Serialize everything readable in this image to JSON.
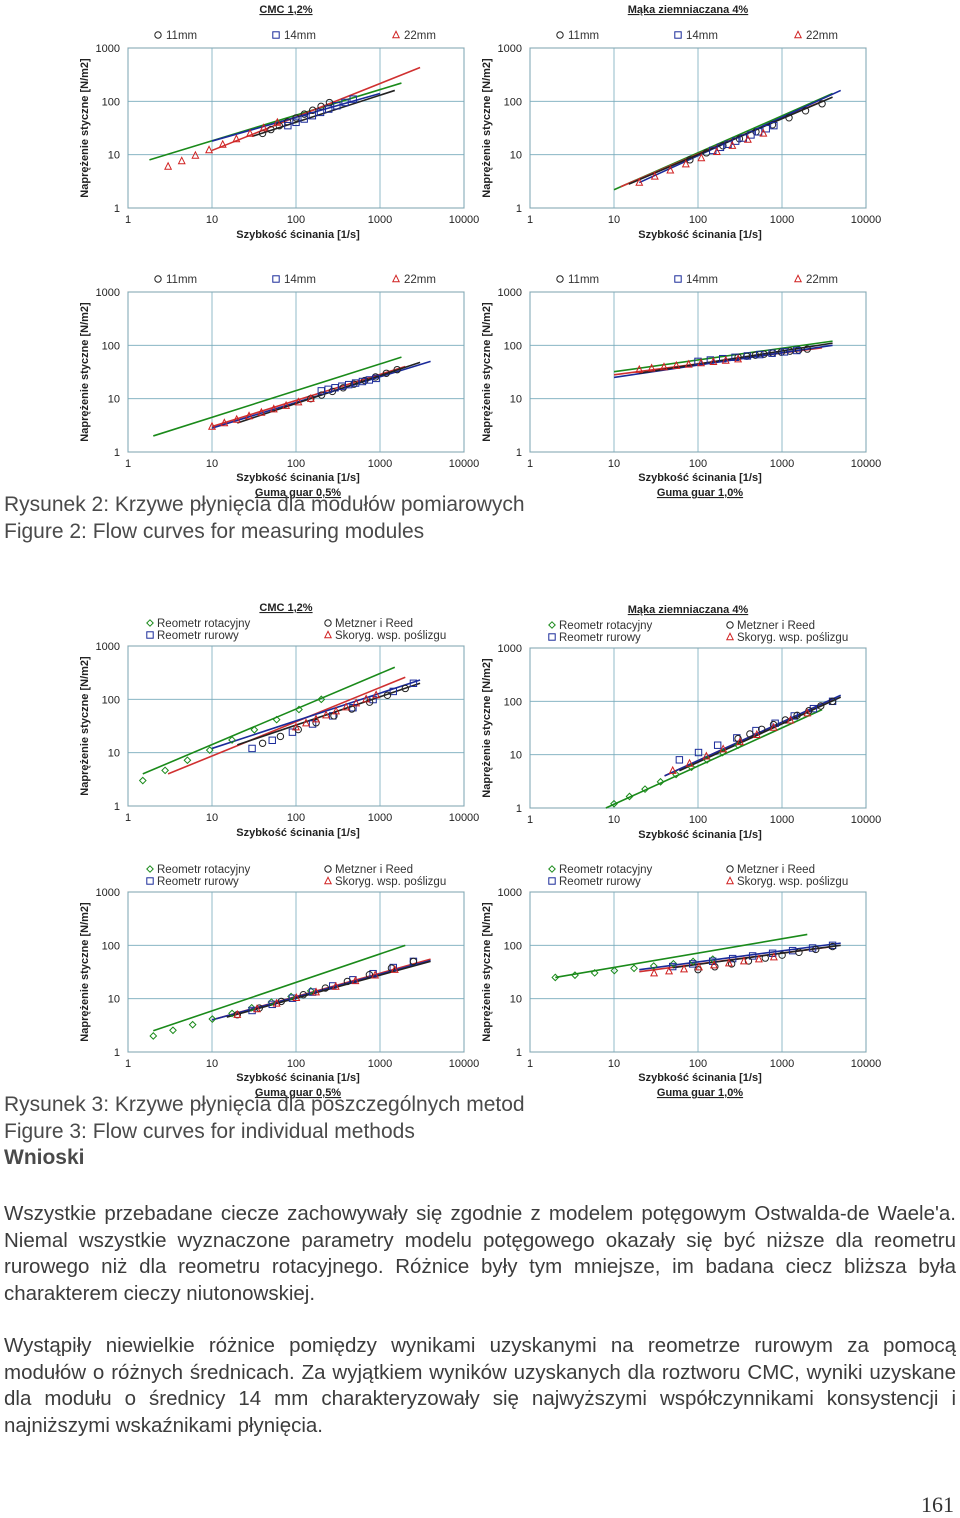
{
  "figure2": {
    "legend": [
      "11mm",
      "14mm",
      "22mm"
    ],
    "legend_colors": [
      "#222222",
      "#1a2a9a",
      "#d02020"
    ],
    "panels": [
      {
        "id": "f2a",
        "title": "CMC 1,2%",
        "sublabel": "",
        "show_xlabel": false,
        "ylabel": "Naprężenie styczne [N/m2]",
        "xlabel": "Szybkość ścinania [1/s]",
        "series": [
          {
            "color": "#222222",
            "marker": "circle",
            "x0": 40,
            "x1": 250,
            "y0": 25,
            "y1": 95
          },
          {
            "color": "#1a2a9a",
            "marker": "square",
            "x0": 80,
            "x1": 480,
            "y0": 35,
            "y1": 110
          },
          {
            "color": "#d02020",
            "marker": "triangle",
            "x0": 3,
            "x1": 60,
            "y0": 6,
            "y1": 40
          }
        ],
        "fits": [
          {
            "color": "#1a8a1a",
            "x0": 1.8,
            "x1": 1800,
            "y0": 8,
            "y1": 220
          },
          {
            "color": "#d03030",
            "x0": 10,
            "x1": 3000,
            "y0": 12,
            "y1": 430
          },
          {
            "color": "#1a2a9a",
            "x0": 10,
            "x1": 1000,
            "y0": 18,
            "y1": 140
          },
          {
            "color": "#222222",
            "x0": 30,
            "x1": 1500,
            "y0": 22,
            "y1": 160
          }
        ]
      },
      {
        "id": "f2b",
        "title": "Mąka ziemniaczana 4%",
        "sublabel": "",
        "show_xlabel": false,
        "ylabel": "Naprężenie styczne [N/m2]",
        "xlabel": "Szybkość ścinania [1/s]",
        "series": [
          {
            "color": "#222222",
            "marker": "circle",
            "x0": 80,
            "x1": 3000,
            "y0": 8,
            "y1": 90
          },
          {
            "color": "#1a2a9a",
            "marker": "square",
            "x0": 150,
            "x1": 800,
            "y0": 12,
            "y1": 35
          },
          {
            "color": "#d02020",
            "marker": "triangle",
            "x0": 20,
            "x1": 600,
            "y0": 3,
            "y1": 25
          }
        ],
        "fits": [
          {
            "color": "#1a8a1a",
            "x0": 10,
            "x1": 4000,
            "y0": 2.2,
            "y1": 140
          },
          {
            "color": "#d03030",
            "x0": 12,
            "x1": 3000,
            "y0": 2.5,
            "y1": 100
          },
          {
            "color": "#1a2a9a",
            "x0": 20,
            "x1": 5000,
            "y0": 3,
            "y1": 160
          },
          {
            "color": "#222222",
            "x0": 15,
            "x1": 4000,
            "y0": 2.8,
            "y1": 120
          }
        ]
      },
      {
        "id": "f2c",
        "title": "",
        "sublabel": "Guma guar 0,5%",
        "show_xlabel": true,
        "ylabel": "Naprężenie styczne [N/m2]",
        "xlabel": "Szybkość ścinania [1/s]",
        "series": [
          {
            "color": "#222222",
            "marker": "circle",
            "x0": 150,
            "x1": 1600,
            "y0": 10,
            "y1": 35
          },
          {
            "color": "#1a2a9a",
            "marker": "square",
            "x0": 200,
            "x1": 900,
            "y0": 14,
            "y1": 24
          },
          {
            "color": "#d02020",
            "marker": "triangle",
            "x0": 10,
            "x1": 150,
            "y0": 3,
            "y1": 10
          }
        ],
        "fits": [
          {
            "color": "#1a8a1a",
            "x0": 2,
            "x1": 1800,
            "y0": 2,
            "y1": 60
          },
          {
            "color": "#d03030",
            "x0": 10,
            "x1": 2000,
            "y0": 3,
            "y1": 40
          },
          {
            "color": "#1a2a9a",
            "x0": 10,
            "x1": 4000,
            "y0": 2.8,
            "y1": 50
          },
          {
            "color": "#222222",
            "x0": 20,
            "x1": 3000,
            "y0": 3.5,
            "y1": 48
          }
        ]
      },
      {
        "id": "f2d",
        "title": "",
        "sublabel": "Guma guar 1,0%",
        "show_xlabel": true,
        "ylabel": "Naprężenie styczne [N/m2]",
        "xlabel": "Szybkość ścinania [1/s]",
        "series": [
          {
            "color": "#222222",
            "marker": "circle",
            "x0": 300,
            "x1": 2000,
            "y0": 60,
            "y1": 85
          },
          {
            "color": "#1a2a9a",
            "marker": "square",
            "x0": 100,
            "x1": 1500,
            "y0": 50,
            "y1": 80
          },
          {
            "color": "#d02020",
            "marker": "triangle",
            "x0": 20,
            "x1": 300,
            "y0": 35,
            "y1": 55
          }
        ],
        "fits": [
          {
            "color": "#1a8a1a",
            "x0": 10,
            "x1": 4000,
            "y0": 32,
            "y1": 120
          },
          {
            "color": "#d03030",
            "x0": 10,
            "x1": 3000,
            "y0": 28,
            "y1": 90
          },
          {
            "color": "#1a2a9a",
            "x0": 10,
            "x1": 4000,
            "y0": 25,
            "y1": 100
          },
          {
            "color": "#222222",
            "x0": 20,
            "x1": 4000,
            "y0": 30,
            "y1": 110
          }
        ]
      }
    ],
    "caption_pl": "Rysunek 2: Krzywe płynięcia dla modułów pomiarowych",
    "caption_en": "Figure 2: Flow curves for measuring modules"
  },
  "figure3": {
    "legend": [
      "Reometr rotacyjny",
      "Reometr rurowy",
      "Metzner i Reed",
      "Skoryg. wsp. poślizgu"
    ],
    "legend_colors": [
      "#1a8a1a",
      "#1a2a9a",
      "#222222",
      "#d02020"
    ],
    "panels": [
      {
        "id": "f3a",
        "title": "CMC 1,2%",
        "sublabel": "",
        "show_xlabel": false,
        "ylabel": "Naprężenie styczne [N/m2]",
        "xlabel": "Szybkość ścinania [1/s]",
        "series": [
          {
            "color": "#1a8a1a",
            "marker": "diamond",
            "x0": 1.5,
            "x1": 200,
            "y0": 3,
            "y1": 100
          },
          {
            "color": "#1a2a9a",
            "marker": "square",
            "x0": 30,
            "x1": 2500,
            "y0": 12,
            "y1": 200
          },
          {
            "color": "#222222",
            "marker": "circle",
            "x0": 40,
            "x1": 2000,
            "y0": 15,
            "y1": 160
          },
          {
            "color": "#d02020",
            "marker": "triangle",
            "x0": 100,
            "x1": 900,
            "y0": 30,
            "y1": 120
          }
        ],
        "fits": [
          {
            "color": "#1a8a1a",
            "x0": 1.5,
            "x1": 1500,
            "y0": 4,
            "y1": 400
          },
          {
            "color": "#d03030",
            "x0": 3,
            "x1": 2000,
            "y0": 4,
            "y1": 260
          },
          {
            "color": "#1a2a9a",
            "x0": 10,
            "x1": 3000,
            "y0": 12,
            "y1": 230
          },
          {
            "color": "#222222",
            "x0": 20,
            "x1": 3000,
            "y0": 14,
            "y1": 200
          }
        ]
      },
      {
        "id": "f3b",
        "title": "Mąka ziemniaczana 4%",
        "sublabel": "",
        "show_xlabel": false,
        "ylabel": "Naprężenie styczne [N/m2]",
        "xlabel": "Szybkość ścinania [1/s]",
        "series": [
          {
            "color": "#1a8a1a",
            "marker": "diamond",
            "x0": 10,
            "x1": 300,
            "y0": 1.2,
            "y1": 15
          },
          {
            "color": "#1a2a9a",
            "marker": "square",
            "x0": 60,
            "x1": 4000,
            "y0": 8,
            "y1": 100
          },
          {
            "color": "#222222",
            "marker": "circle",
            "x0": 300,
            "x1": 4000,
            "y0": 20,
            "y1": 100
          },
          {
            "color": "#d02020",
            "marker": "triangle",
            "x0": 50,
            "x1": 2000,
            "y0": 5,
            "y1": 60
          }
        ],
        "fits": [
          {
            "color": "#1a8a1a",
            "x0": 8,
            "x1": 3000,
            "y0": 1,
            "y1": 70
          },
          {
            "color": "#d03030",
            "x0": 40,
            "x1": 4000,
            "y0": 4,
            "y1": 110
          },
          {
            "color": "#1a2a9a",
            "x0": 40,
            "x1": 5000,
            "y0": 4,
            "y1": 130
          },
          {
            "color": "#222222",
            "x0": 60,
            "x1": 5000,
            "y0": 5,
            "y1": 120
          }
        ]
      },
      {
        "id": "f3c",
        "title": "",
        "sublabel": "Guma guar 0,5%",
        "show_xlabel": true,
        "ylabel": "Naprężenie styczne [N/m2]",
        "xlabel": "Szybkość ścinania [1/s]",
        "series": [
          {
            "color": "#1a8a1a",
            "marker": "diamond",
            "x0": 2,
            "x1": 150,
            "y0": 2,
            "y1": 14
          },
          {
            "color": "#1a2a9a",
            "marker": "square",
            "x0": 30,
            "x1": 2500,
            "y0": 6,
            "y1": 50
          },
          {
            "color": "#222222",
            "marker": "circle",
            "x0": 20,
            "x1": 2500,
            "y0": 5,
            "y1": 50
          },
          {
            "color": "#d02020",
            "marker": "triangle",
            "x0": 20,
            "x1": 1500,
            "y0": 5,
            "y1": 35
          }
        ],
        "fits": [
          {
            "color": "#1a8a1a",
            "x0": 2,
            "x1": 2000,
            "y0": 2.5,
            "y1": 100
          },
          {
            "color": "#d03030",
            "x0": 10,
            "x1": 4000,
            "y0": 4,
            "y1": 55
          },
          {
            "color": "#1a2a9a",
            "x0": 10,
            "x1": 4000,
            "y0": 4,
            "y1": 52
          },
          {
            "color": "#222222",
            "x0": 15,
            "x1": 4000,
            "y0": 4.5,
            "y1": 50
          }
        ]
      },
      {
        "id": "f3d",
        "title": "",
        "sublabel": "Guma guar 1,0%",
        "show_xlabel": true,
        "ylabel": "Naprężenie styczne [N/m2]",
        "xlabel": "Szybkość ścinania [1/s]",
        "series": [
          {
            "color": "#1a8a1a",
            "marker": "diamond",
            "x0": 2,
            "x1": 150,
            "y0": 25,
            "y1": 55
          },
          {
            "color": "#1a2a9a",
            "marker": "square",
            "x0": 50,
            "x1": 4000,
            "y0": 40,
            "y1": 100
          },
          {
            "color": "#222222",
            "marker": "circle",
            "x0": 100,
            "x1": 4000,
            "y0": 35,
            "y1": 95
          },
          {
            "color": "#d02020",
            "marker": "triangle",
            "x0": 30,
            "x1": 800,
            "y0": 30,
            "y1": 60
          }
        ],
        "fits": [
          {
            "color": "#1a8a1a",
            "x0": 2,
            "x1": 2000,
            "y0": 25,
            "y1": 160
          },
          {
            "color": "#d03030",
            "x0": 20,
            "x1": 4000,
            "y0": 32,
            "y1": 95
          },
          {
            "color": "#1a2a9a",
            "x0": 20,
            "x1": 5000,
            "y0": 35,
            "y1": 110
          },
          {
            "color": "#222222",
            "x0": 50,
            "x1": 5000,
            "y0": 38,
            "y1": 100
          }
        ]
      }
    ],
    "caption_pl": "Rysunek 3: Krzywe płynięcia dla poszczególnych metod",
    "caption_en": "Figure 3: Flow curves for individual methods"
  },
  "axes": {
    "x_ticks": [
      "1",
      "10",
      "100",
      "1000",
      "10000"
    ],
    "y_ticks": [
      "1",
      "10",
      "100",
      "1000"
    ],
    "x_scale": "log",
    "y_scale": "log",
    "xlim": [
      1,
      10000
    ],
    "ylim": [
      1,
      1000
    ],
    "grid": true
  },
  "section_heading": "Wnioski",
  "paragraph1": "Wszystkie przebadane ciecze zachowywały się zgodnie z modelem potęgowym Ostwalda-de Waele'a. Niemal wszystkie wyznaczone parametry modelu potęgowego okazały się być niższe dla reometru rurowego niż dla reometru rotacyjnego. Różnice były tym mniejsze, im badana ciecz bliższa była charakterem cieczy niutonowskiej.",
  "paragraph2": "Wystąpiły niewielkie różnice pomiędzy wynikami uzyskanymi na reometrze rurowym za pomocą modułów o różnych średnicach. Za wyjątkiem wyników uzyskanych dla roztworu CMC, wyniki uzyskane dla modułu o średnicy 14 mm charakteryzowały się najwyższymi współczynnikami konsystencji i najniższymi wskaźnikami płynięcia.",
  "page_number": "161"
}
